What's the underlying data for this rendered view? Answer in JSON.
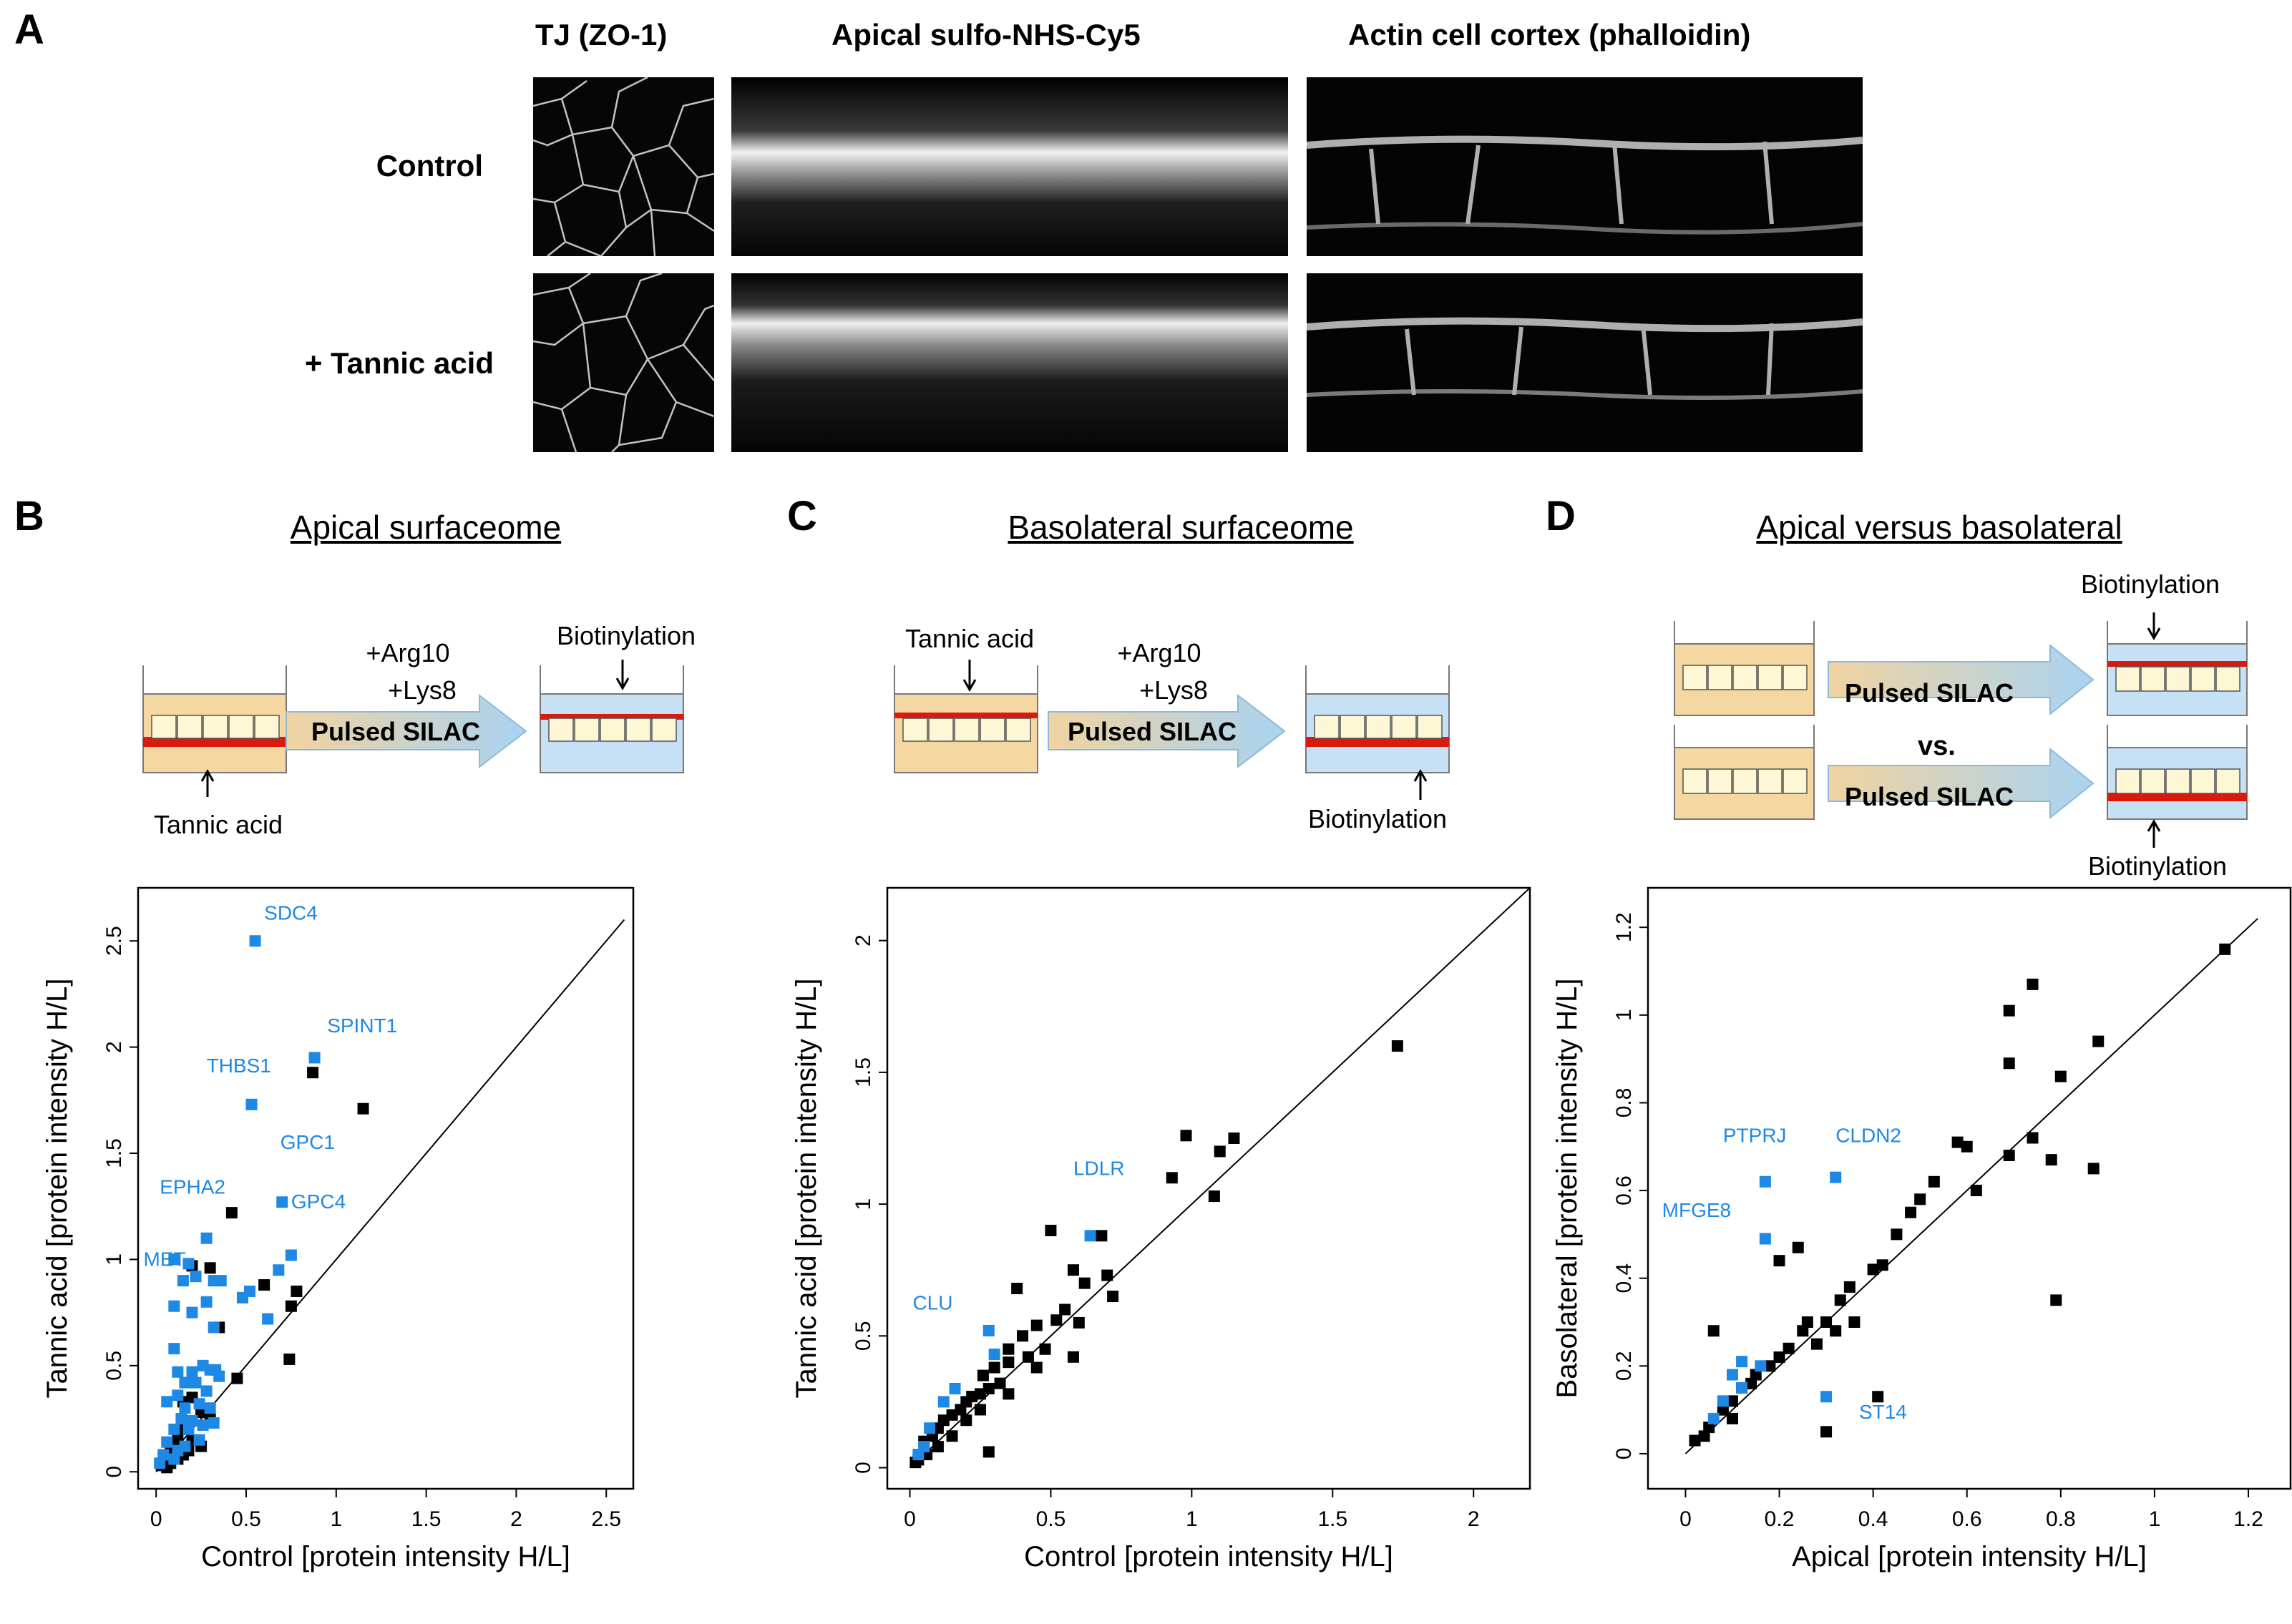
{
  "panel_a": {
    "letter": "A",
    "column_headers": [
      "TJ (ZO-1)",
      "Apical sulfo-NHS-Cy5",
      "Actin cell cortex (phalloidin)"
    ],
    "row_labels": [
      "Control",
      "+ Tannic acid"
    ]
  },
  "panel_b": {
    "letter": "B",
    "title": "Apical surfaceome",
    "schematic": {
      "arg": "+Arg10",
      "lys": "+Lys8",
      "arrow_label": "Pulsed SILAC",
      "tannic": "Tannic acid",
      "biotin": "Biotinylation"
    }
  },
  "panel_c": {
    "letter": "C",
    "title": "Basolateral surfaceome",
    "schematic": {
      "arg": "+Arg10",
      "lys": "+Lys8",
      "arrow_label": "Pulsed SILAC",
      "tannic": "Tannic acid",
      "biotin": "Biotinylation"
    }
  },
  "panel_d": {
    "letter": "D",
    "title": "Apical versus basolateral",
    "schematic": {
      "arrow_label_1": "Pulsed SILAC",
      "arrow_label_2": "Pulsed SILAC",
      "vs": "vs.",
      "biotin_top": "Biotinylation",
      "biotin_bottom": "Biotinylation"
    }
  },
  "colors": {
    "black_points": "#000000",
    "blue_points": "#1e88e5",
    "medium": "#f5d7a1",
    "light_medium": "#c6e0f5",
    "red_layer": "#d81b0c",
    "cell": "#fdf7d6",
    "arrow_start": "#f1d3a0",
    "arrow_end": "#a9d3f2"
  },
  "chart_data": [
    {
      "type": "scatter",
      "title": "Apical surfaceome",
      "xlabel": "Control  [protein intensity H/L]",
      "ylabel": "Tannic acid  [protein intensity H/L]",
      "xlim": [
        -0.1,
        2.65
      ],
      "ylim": [
        -0.08,
        2.75
      ],
      "xticks": [
        0,
        0.5,
        1,
        1.5,
        2,
        2.5
      ],
      "xtick_labels": [
        "0",
        "0.5",
        "1",
        "1.5",
        "2",
        "2.5"
      ],
      "yticks": [
        0,
        0.5,
        1,
        1.5,
        2,
        2.5
      ],
      "ytick_labels": [
        "0",
        "0.5",
        "1",
        "1.5",
        "2",
        "2.5"
      ],
      "diagonal": [
        0,
        2.6
      ],
      "annotations": [
        {
          "text": "SDC4",
          "x": 0.6,
          "y": 2.6
        },
        {
          "text": "SPINT1",
          "x": 0.95,
          "y": 2.07
        },
        {
          "text": "THBS1",
          "x": 0.28,
          "y": 1.88
        },
        {
          "text": "GPC1",
          "x": 0.69,
          "y": 1.52
        },
        {
          "text": "EPHA2",
          "x": 0.02,
          "y": 1.31
        },
        {
          "text": "GPC4",
          "x": 0.75,
          "y": 1.24
        },
        {
          "text": "MET",
          "x": -0.07,
          "y": 0.97
        }
      ],
      "series": [
        {
          "name": "blue",
          "color": "#1e88e5",
          "points": [
            [
              0.55,
              2.5
            ],
            [
              0.88,
              1.95
            ],
            [
              0.53,
              1.73
            ],
            [
              0.7,
              1.27
            ],
            [
              0.28,
              1.1
            ],
            [
              0.1,
              1.0
            ],
            [
              0.18,
              0.98
            ],
            [
              0.75,
              1.02
            ],
            [
              0.68,
              0.95
            ],
            [
              0.15,
              0.9
            ],
            [
              0.32,
              0.9
            ],
            [
              0.36,
              0.9
            ],
            [
              0.22,
              0.92
            ],
            [
              0.48,
              0.82
            ],
            [
              0.52,
              0.85
            ],
            [
              0.28,
              0.8
            ],
            [
              0.1,
              0.78
            ],
            [
              0.2,
              0.75
            ],
            [
              0.62,
              0.72
            ],
            [
              0.32,
              0.68
            ],
            [
              0.1,
              0.58
            ],
            [
              0.12,
              0.47
            ],
            [
              0.2,
              0.47
            ],
            [
              0.26,
              0.5
            ],
            [
              0.3,
              0.48
            ],
            [
              0.16,
              0.42
            ],
            [
              0.22,
              0.42
            ],
            [
              0.12,
              0.36
            ],
            [
              0.28,
              0.38
            ],
            [
              0.33,
              0.48
            ],
            [
              0.35,
              0.45
            ],
            [
              0.06,
              0.33
            ],
            [
              0.16,
              0.3
            ],
            [
              0.24,
              0.32
            ],
            [
              0.3,
              0.3
            ],
            [
              0.14,
              0.25
            ],
            [
              0.2,
              0.24
            ],
            [
              0.26,
              0.22
            ],
            [
              0.32,
              0.23
            ],
            [
              0.1,
              0.2
            ],
            [
              0.18,
              0.2
            ],
            [
              0.24,
              0.15
            ],
            [
              0.06,
              0.14
            ],
            [
              0.12,
              0.1
            ],
            [
              0.16,
              0.12
            ],
            [
              0.04,
              0.08
            ],
            [
              0.1,
              0.06
            ],
            [
              0.02,
              0.04
            ]
          ]
        },
        {
          "name": "black",
          "color": "#000000",
          "points": [
            [
              0.87,
              1.88
            ],
            [
              1.15,
              1.71
            ],
            [
              0.42,
              1.22
            ],
            [
              0.6,
              0.88
            ],
            [
              0.75,
              0.78
            ],
            [
              0.78,
              0.85
            ],
            [
              0.74,
              0.53
            ],
            [
              0.45,
              0.44
            ],
            [
              0.2,
              0.97
            ],
            [
              0.3,
              0.96
            ],
            [
              0.35,
              0.68
            ],
            [
              0.15,
              0.33
            ],
            [
              0.2,
              0.35
            ],
            [
              0.25,
              0.28
            ],
            [
              0.3,
              0.26
            ],
            [
              0.15,
              0.2
            ],
            [
              0.2,
              0.15
            ],
            [
              0.12,
              0.15
            ],
            [
              0.25,
              0.12
            ],
            [
              0.08,
              0.12
            ],
            [
              0.1,
              0.1
            ],
            [
              0.15,
              0.08
            ],
            [
              0.05,
              0.06
            ],
            [
              0.08,
              0.04
            ],
            [
              0.03,
              0.03
            ],
            [
              0.06,
              0.02
            ],
            [
              0.12,
              0.06
            ],
            [
              0.18,
              0.1
            ]
          ]
        }
      ]
    },
    {
      "type": "scatter",
      "title": "Basolateral surfaceome",
      "xlabel": "Control  [protein intensity H/L]",
      "ylabel": "Tannic acid  [protein intensity H/L]",
      "xlim": [
        -0.08,
        2.2
      ],
      "ylim": [
        -0.08,
        2.2
      ],
      "xticks": [
        0,
        0.5,
        1,
        1.5,
        2
      ],
      "xtick_labels": [
        "0",
        "0.5",
        "1",
        "1.5",
        "2"
      ],
      "yticks": [
        0,
        0.5,
        1,
        1.5,
        2
      ],
      "ytick_labels": [
        "0",
        "0.5",
        "1",
        "1.5",
        "2"
      ],
      "diagonal": [
        0,
        2.2
      ],
      "annotations": [
        {
          "text": "LDLR",
          "x": 0.58,
          "y": 1.11
        },
        {
          "text": "CLU",
          "x": 0.01,
          "y": 0.6
        }
      ],
      "series": [
        {
          "name": "blue",
          "color": "#1e88e5",
          "points": [
            [
              0.64,
              0.88
            ],
            [
              0.28,
              0.52
            ],
            [
              0.3,
              0.43
            ],
            [
              0.16,
              0.3
            ],
            [
              0.12,
              0.25
            ],
            [
              0.07,
              0.15
            ],
            [
              0.05,
              0.08
            ],
            [
              0.03,
              0.05
            ]
          ]
        },
        {
          "name": "black",
          "color": "#000000",
          "points": [
            [
              1.73,
              1.6
            ],
            [
              1.15,
              1.25
            ],
            [
              1.1,
              1.2
            ],
            [
              0.98,
              1.26
            ],
            [
              1.08,
              1.03
            ],
            [
              0.93,
              1.1
            ],
            [
              0.68,
              0.88
            ],
            [
              0.5,
              0.9
            ],
            [
              0.38,
              0.68
            ],
            [
              0.58,
              0.75
            ],
            [
              0.62,
              0.7
            ],
            [
              0.7,
              0.73
            ],
            [
              0.72,
              0.65
            ],
            [
              0.55,
              0.6
            ],
            [
              0.52,
              0.56
            ],
            [
              0.6,
              0.55
            ],
            [
              0.45,
              0.54
            ],
            [
              0.4,
              0.5
            ],
            [
              0.35,
              0.45
            ],
            [
              0.48,
              0.45
            ],
            [
              0.58,
              0.42
            ],
            [
              0.42,
              0.42
            ],
            [
              0.35,
              0.4
            ],
            [
              0.3,
              0.38
            ],
            [
              0.26,
              0.35
            ],
            [
              0.32,
              0.32
            ],
            [
              0.28,
              0.3
            ],
            [
              0.25,
              0.28
            ],
            [
              0.22,
              0.27
            ],
            [
              0.2,
              0.25
            ],
            [
              0.18,
              0.22
            ],
            [
              0.15,
              0.2
            ],
            [
              0.25,
              0.22
            ],
            [
              0.12,
              0.18
            ],
            [
              0.1,
              0.15
            ],
            [
              0.08,
              0.12
            ],
            [
              0.15,
              0.12
            ],
            [
              0.05,
              0.1
            ],
            [
              0.1,
              0.08
            ],
            [
              0.06,
              0.05
            ],
            [
              0.03,
              0.03
            ],
            [
              0.02,
              0.02
            ],
            [
              0.28,
              0.06
            ],
            [
              0.2,
              0.18
            ],
            [
              0.35,
              0.28
            ],
            [
              0.45,
              0.38
            ]
          ]
        }
      ]
    },
    {
      "type": "scatter",
      "title": "Apical versus basolateral",
      "xlabel": "Apical  [protein intensity H/L]",
      "ylabel": "Basolateral  [protein intensity H/L]",
      "xlim": [
        -0.08,
        1.29
      ],
      "ylim": [
        -0.08,
        1.29
      ],
      "xticks": [
        0,
        0.2,
        0.4,
        0.6,
        0.8,
        1,
        1.2
      ],
      "xtick_labels": [
        "0",
        "0.2",
        "0.4",
        "0.6",
        "0.8",
        "1",
        "1.2"
      ],
      "yticks": [
        0,
        0.2,
        0.4,
        0.6,
        0.8,
        1,
        1.2
      ],
      "ytick_labels": [
        "0",
        "0.2",
        "0.4",
        "0.6",
        "0.8",
        "1",
        "1.2"
      ],
      "diagonal": [
        0,
        1.22
      ],
      "annotations": [
        {
          "text": "PTPRJ",
          "x": 0.08,
          "y": 0.71
        },
        {
          "text": "CLDN2",
          "x": 0.32,
          "y": 0.71
        },
        {
          "text": "MFGE8",
          "x": -0.05,
          "y": 0.54
        },
        {
          "text": "ST14",
          "x": 0.37,
          "y": 0.08
        }
      ],
      "series": [
        {
          "name": "blue",
          "color": "#1e88e5",
          "points": [
            [
              0.17,
              0.62
            ],
            [
              0.32,
              0.63
            ],
            [
              0.17,
              0.49
            ],
            [
              0.12,
              0.21
            ],
            [
              0.16,
              0.2
            ],
            [
              0.1,
              0.18
            ],
            [
              0.12,
              0.15
            ],
            [
              0.08,
              0.12
            ],
            [
              0.3,
              0.13
            ],
            [
              0.06,
              0.08
            ]
          ]
        },
        {
          "name": "black",
          "color": "#000000",
          "points": [
            [
              1.15,
              1.15
            ],
            [
              0.74,
              1.07
            ],
            [
              0.69,
              1.01
            ],
            [
              0.88,
              0.94
            ],
            [
              0.69,
              0.89
            ],
            [
              0.8,
              0.86
            ],
            [
              0.74,
              0.72
            ],
            [
              0.78,
              0.67
            ],
            [
              0.69,
              0.68
            ],
            [
              0.58,
              0.71
            ],
            [
              0.6,
              0.7
            ],
            [
              0.62,
              0.6
            ],
            [
              0.87,
              0.65
            ],
            [
              0.53,
              0.62
            ],
            [
              0.5,
              0.58
            ],
            [
              0.48,
              0.55
            ],
            [
              0.45,
              0.5
            ],
            [
              0.4,
              0.42
            ],
            [
              0.42,
              0.43
            ],
            [
              0.35,
              0.38
            ],
            [
              0.33,
              0.35
            ],
            [
              0.3,
              0.3
            ],
            [
              0.25,
              0.28
            ],
            [
              0.28,
              0.25
            ],
            [
              0.22,
              0.24
            ],
            [
              0.2,
              0.22
            ],
            [
              0.18,
              0.2
            ],
            [
              0.15,
              0.18
            ],
            [
              0.12,
              0.15
            ],
            [
              0.1,
              0.12
            ],
            [
              0.08,
              0.1
            ],
            [
              0.05,
              0.06
            ],
            [
              0.02,
              0.03
            ],
            [
              0.06,
              0.28
            ],
            [
              0.2,
              0.44
            ],
            [
              0.24,
              0.47
            ],
            [
              0.79,
              0.35
            ],
            [
              0.41,
              0.13
            ],
            [
              0.3,
              0.05
            ],
            [
              0.26,
              0.3
            ],
            [
              0.32,
              0.28
            ],
            [
              0.36,
              0.3
            ],
            [
              0.14,
              0.16
            ],
            [
              0.1,
              0.08
            ],
            [
              0.04,
              0.04
            ]
          ]
        }
      ]
    }
  ]
}
